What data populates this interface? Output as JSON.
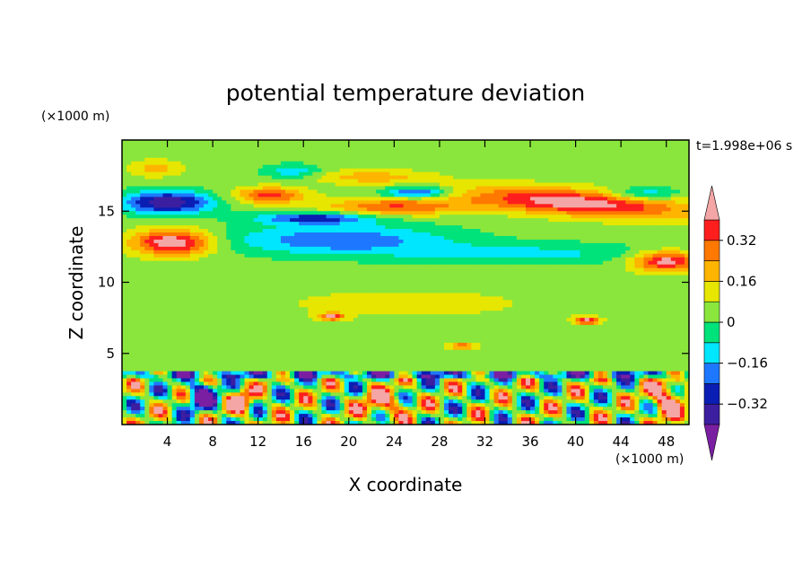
{
  "chart_data": {
    "type": "heatmap",
    "title": "potential temperature deviation",
    "xlabel": "X coordinate",
    "ylabel": "Z coordinate",
    "x_unit": "(×1000 m)",
    "y_unit": "(×1000 m)",
    "time_label": "t=1.998e+06 s",
    "xlim": [
      0,
      50
    ],
    "ylim": [
      0,
      20
    ],
    "x_ticks": [
      4,
      8,
      12,
      16,
      20,
      24,
      28,
      32,
      36,
      40,
      44,
      48
    ],
    "y_ticks": [
      5,
      10,
      15
    ],
    "colorbar": {
      "levels": [
        -0.4,
        -0.32,
        -0.24,
        -0.16,
        -0.08,
        0,
        0.08,
        0.16,
        0.24,
        0.32,
        0.4
      ],
      "labels": [
        "0.32",
        "0.16",
        "0",
        "−0.16",
        "−0.32"
      ],
      "label_values": [
        0.32,
        0.16,
        0,
        -0.16,
        -0.32
      ],
      "colors_low_to_high": [
        "#7a1fa2",
        "#3c1fa0",
        "#0a1eb4",
        "#1e78ff",
        "#00e6ff",
        "#00e27a",
        "#8ae63c",
        "#e6e600",
        "#ffb400",
        "#ff7800",
        "#ff1e1e",
        "#f4a6a6"
      ],
      "extend": "both"
    },
    "features": [
      {
        "name": "lower-boundary-turbulent-cells",
        "z_range": [
          0,
          3.5
        ],
        "value_range": [
          -0.4,
          0.4
        ]
      },
      {
        "name": "upper-positive-layer",
        "z_range": [
          14,
          17
        ],
        "value_range": [
          0.24,
          0.4
        ]
      },
      {
        "name": "upper-negative-layer",
        "z_range": [
          11,
          14
        ],
        "value_range": [
          -0.24,
          -0.08
        ]
      },
      {
        "name": "mid-level-neutral",
        "z_range": [
          4,
          11
        ],
        "value_range": [
          0,
          0.08
        ]
      }
    ]
  }
}
